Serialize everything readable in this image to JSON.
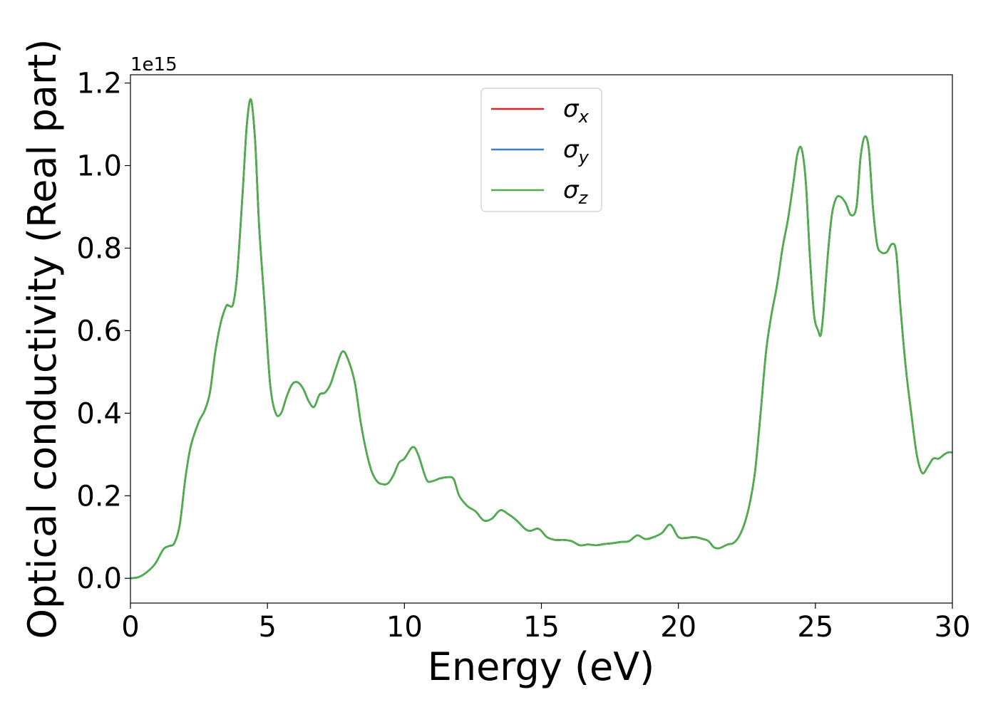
{
  "chart_data": {
    "type": "line",
    "xlabel": "Energy (eV)",
    "ylabel": "Optical conductivity (Real part)",
    "y_offset_text": "1e15",
    "xlim": [
      0,
      30
    ],
    "ylim": [
      -0.06,
      1.22
    ],
    "y_scale_factor": 1000000000000000.0,
    "xticks": [
      0,
      5,
      10,
      15,
      20,
      25,
      30
    ],
    "xtick_labels": [
      "0",
      "5",
      "10",
      "15",
      "20",
      "25",
      "30"
    ],
    "yticks": [
      0.0,
      0.2,
      0.4,
      0.6,
      0.8,
      1.0,
      1.2
    ],
    "ytick_labels": [
      "0.0",
      "0.2",
      "0.4",
      "0.6",
      "0.8",
      "1.0",
      "1.2"
    ],
    "grid": false,
    "legend_position": "top-center",
    "series": [
      {
        "name": "σ",
        "subscript": "x",
        "color": "#d62728"
      },
      {
        "name": "σ",
        "subscript": "y",
        "color": "#3b7fc4"
      },
      {
        "name": "σ",
        "subscript": "z",
        "color": "#4daf4a"
      }
    ],
    "x": [
      0,
      0.3,
      0.6,
      0.9,
      1.2,
      1.4,
      1.6,
      1.8,
      2.0,
      2.2,
      2.5,
      2.7,
      2.9,
      3.1,
      3.3,
      3.5,
      3.6,
      3.75,
      3.9,
      4.1,
      4.25,
      4.4,
      4.55,
      4.7,
      4.9,
      5.1,
      5.3,
      5.5,
      5.7,
      5.9,
      6.1,
      6.3,
      6.5,
      6.7,
      6.9,
      7.1,
      7.3,
      7.5,
      7.75,
      8.0,
      8.2,
      8.4,
      8.6,
      8.8,
      9.0,
      9.2,
      9.4,
      9.6,
      9.8,
      10.0,
      10.3,
      10.5,
      10.8,
      11.0,
      11.3,
      11.6,
      11.8,
      12.0,
      12.3,
      12.6,
      12.9,
      13.2,
      13.5,
      13.8,
      14.1,
      14.4,
      14.6,
      14.9,
      15.2,
      15.5,
      15.8,
      16.1,
      16.4,
      16.7,
      17.0,
      17.3,
      17.6,
      17.9,
      18.2,
      18.5,
      18.8,
      19.1,
      19.4,
      19.7,
      20.0,
      20.3,
      20.6,
      20.9,
      21.1,
      21.3,
      21.5,
      21.8,
      22.0,
      22.2,
      22.4,
      22.6,
      22.8,
      23.0,
      23.2,
      23.4,
      23.6,
      23.8,
      24.0,
      24.2,
      24.35,
      24.5,
      24.65,
      24.8,
      24.95,
      25.1,
      25.2,
      25.3,
      25.45,
      25.6,
      25.75,
      25.9,
      26.1,
      26.3,
      26.5,
      26.65,
      26.8,
      26.95,
      27.1,
      27.25,
      27.4,
      27.6,
      27.8,
      27.95,
      28.1,
      28.3,
      28.5,
      28.7,
      28.9,
      29.1,
      29.3,
      29.5,
      29.7,
      29.85,
      30.0
    ],
    "y": [
      0.0,
      0.003,
      0.015,
      0.035,
      0.07,
      0.078,
      0.085,
      0.13,
      0.24,
      0.32,
      0.38,
      0.405,
      0.45,
      0.55,
      0.62,
      0.66,
      0.66,
      0.665,
      0.74,
      0.94,
      1.1,
      1.16,
      1.06,
      0.85,
      0.66,
      0.47,
      0.4,
      0.4,
      0.44,
      0.47,
      0.475,
      0.46,
      0.43,
      0.415,
      0.445,
      0.45,
      0.47,
      0.51,
      0.55,
      0.52,
      0.47,
      0.38,
      0.31,
      0.26,
      0.235,
      0.228,
      0.23,
      0.25,
      0.28,
      0.29,
      0.318,
      0.3,
      0.24,
      0.235,
      0.242,
      0.245,
      0.24,
      0.2,
      0.175,
      0.162,
      0.14,
      0.145,
      0.165,
      0.155,
      0.14,
      0.12,
      0.115,
      0.12,
      0.1,
      0.093,
      0.093,
      0.09,
      0.08,
      0.082,
      0.08,
      0.083,
      0.085,
      0.088,
      0.09,
      0.104,
      0.095,
      0.1,
      0.11,
      0.13,
      0.1,
      0.098,
      0.1,
      0.095,
      0.09,
      0.075,
      0.073,
      0.082,
      0.085,
      0.1,
      0.13,
      0.18,
      0.26,
      0.4,
      0.55,
      0.64,
      0.71,
      0.8,
      0.87,
      0.96,
      1.03,
      1.04,
      0.96,
      0.78,
      0.64,
      0.6,
      0.59,
      0.65,
      0.78,
      0.88,
      0.92,
      0.925,
      0.91,
      0.88,
      0.9,
      1.02,
      1.07,
      1.04,
      0.9,
      0.81,
      0.79,
      0.79,
      0.81,
      0.79,
      0.66,
      0.51,
      0.4,
      0.3,
      0.255,
      0.27,
      0.29,
      0.29,
      0.3,
      0.305,
      0.305
    ]
  }
}
